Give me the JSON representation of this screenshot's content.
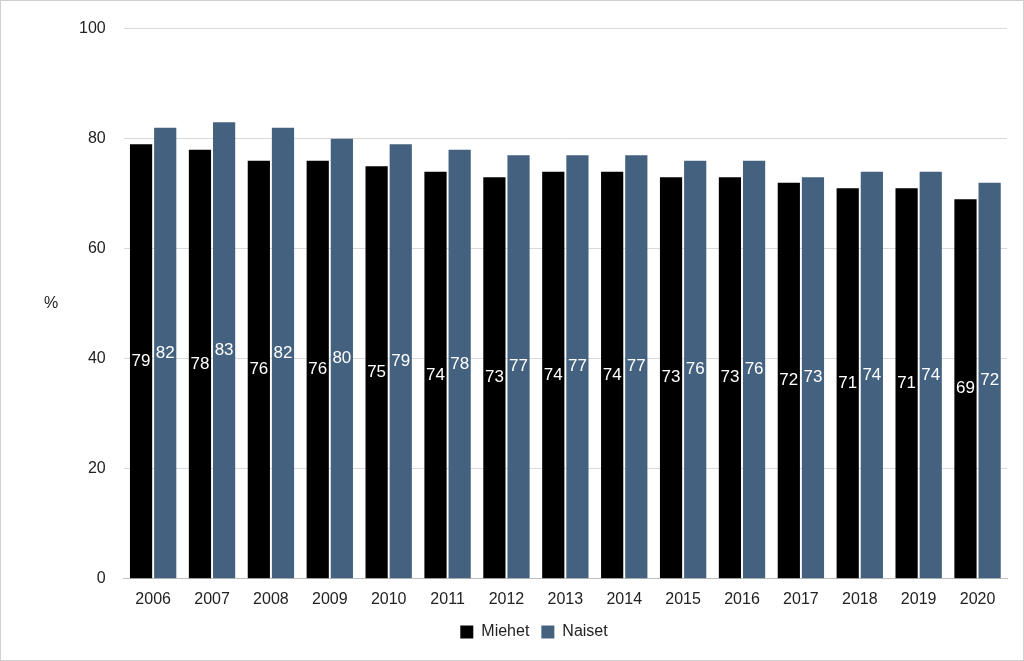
{
  "chart_data": {
    "type": "bar",
    "categories": [
      "2006",
      "2007",
      "2008",
      "2009",
      "2010",
      "2011",
      "2012",
      "2013",
      "2014",
      "2015",
      "2016",
      "2017",
      "2018",
      "2019",
      "2020"
    ],
    "series": [
      {
        "name": "Miehet",
        "color": "#000000",
        "values": [
          79,
          78,
          76,
          76,
          75,
          74,
          73,
          74,
          74,
          73,
          73,
          72,
          71,
          71,
          69
        ]
      },
      {
        "name": "Naiset",
        "color": "#44627f",
        "values": [
          82,
          83,
          82,
          80,
          79,
          78,
          77,
          77,
          77,
          76,
          76,
          73,
          74,
          74,
          72
        ]
      }
    ],
    "y_label": "%",
    "ylim": [
      0,
      100
    ],
    "yticks": [
      0,
      20,
      40,
      60,
      80,
      100
    ],
    "grid": true,
    "legend": "bottom",
    "data_labels": true
  }
}
